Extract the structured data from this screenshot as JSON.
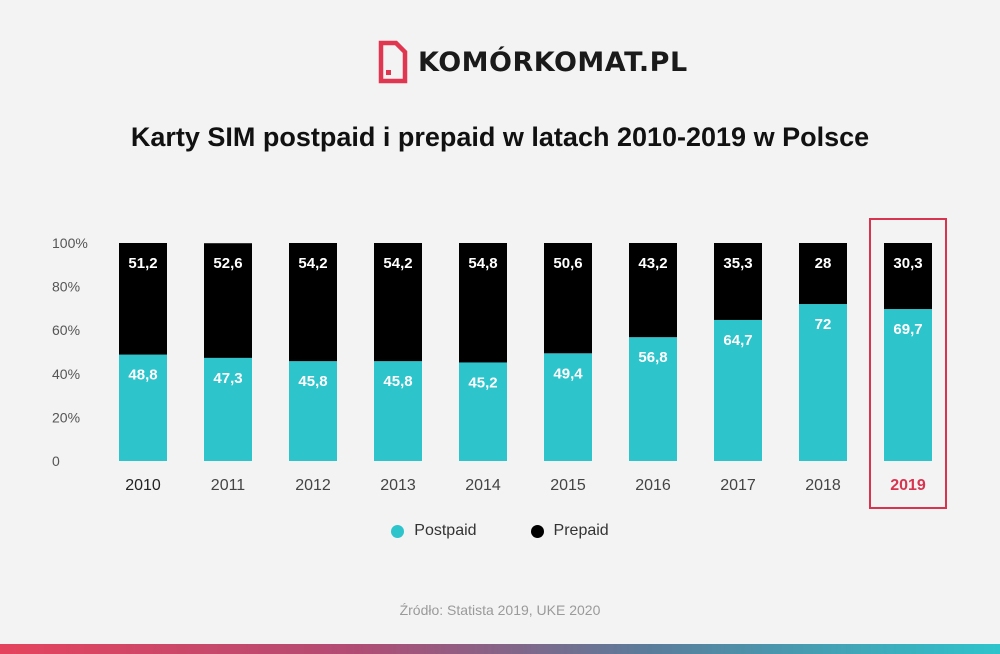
{
  "logo": {
    "text": "KOMÓRKOMAT.PL",
    "icon": "sim-card-icon"
  },
  "chart_data": {
    "type": "bar",
    "stacked": true,
    "title": "Karty SIM postpaid i prepaid w latach 2010-2019 w Polsce",
    "categories": [
      "2010",
      "2011",
      "2012",
      "2013",
      "2014",
      "2015",
      "2016",
      "2017",
      "2018",
      "2019"
    ],
    "series": [
      {
        "name": "Postpaid",
        "color": "#2ec4cc",
        "values": [
          48.8,
          47.3,
          45.8,
          45.8,
          45.2,
          49.4,
          56.8,
          64.7,
          72,
          69.7
        ],
        "labels": [
          "48,8",
          "47,3",
          "45,8",
          "45,8",
          "45,2",
          "49,4",
          "56,8",
          "64,7",
          "72",
          "69,7"
        ]
      },
      {
        "name": "Prepaid",
        "color": "#000000",
        "values": [
          51.2,
          52.6,
          54.2,
          54.2,
          54.8,
          50.6,
          43.2,
          35.3,
          28,
          30.3
        ],
        "labels": [
          "51,2",
          "52,6",
          "54,2",
          "54,2",
          "54,8",
          "50,6",
          "43,2",
          "35,3",
          "28",
          "30,3"
        ]
      }
    ],
    "y_ticks": [
      "0",
      "20%",
      "40%",
      "60%",
      "80%",
      "100%"
    ],
    "ylim": [
      0,
      100
    ],
    "highlight": {
      "category": "2019",
      "color": "#d8344f"
    },
    "legend_position": "bottom-center",
    "grid": false
  },
  "source": "Źródło: Statista 2019, UKE 2020"
}
